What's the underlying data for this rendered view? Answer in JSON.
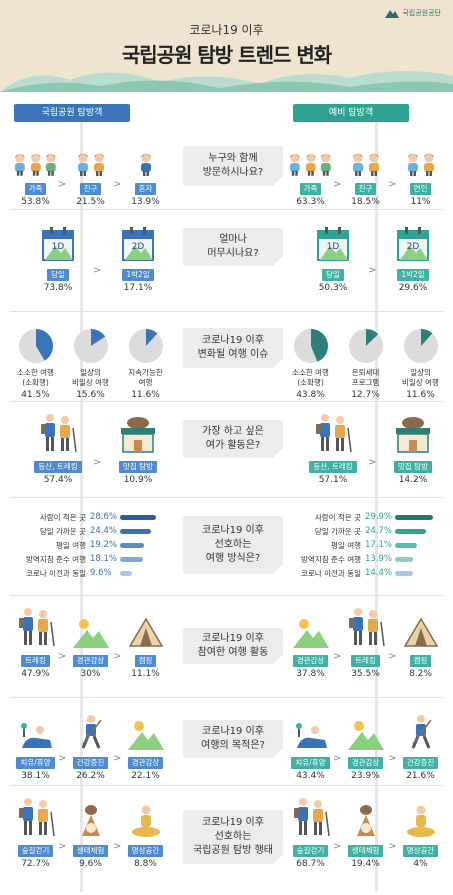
{
  "header": {
    "subtitle": "코로나19 이후",
    "title": "국립공원 탐방 트렌드 변화",
    "logo_text": "국립공원공단"
  },
  "columns": {
    "left": "국립공원 탐방객",
    "right": "예비 탐방객"
  },
  "colors": {
    "left_blue": "#3b73b9",
    "right_teal": "#2ea391",
    "header_bg": "#efe4cf"
  },
  "sections": [
    {
      "question": "누구와 함께\n방문하시나요?",
      "left": [
        {
          "label": "가족",
          "value": "53.8%"
        },
        {
          "label": "친구",
          "value": "21.5%"
        },
        {
          "label": "혼자",
          "value": "13.9%"
        }
      ],
      "right": [
        {
          "label": "가족",
          "value": "63.3%"
        },
        {
          "label": "친구",
          "value": "18.5%"
        },
        {
          "label": "연인",
          "value": "11%"
        }
      ]
    },
    {
      "question": "얼마나\n머무시나요?",
      "left": [
        {
          "label": "당일",
          "value": "73.8%",
          "cal": "1D"
        },
        {
          "label": "1박2일",
          "value": "17.1%",
          "cal": "2D"
        }
      ],
      "right": [
        {
          "label": "당일",
          "value": "50.3%",
          "cal": "1D"
        },
        {
          "label": "1박2일",
          "value": "29.6%",
          "cal": "2D"
        }
      ]
    },
    {
      "question": "코로나19 이후\n변화될 여행 이슈",
      "left": [
        {
          "label": "소소한 여행\n(소확행)",
          "value": "41.5%",
          "share": 0.415
        },
        {
          "label": "일상의\n비일상 여행",
          "value": "15.6%",
          "share": 0.156
        },
        {
          "label": "지속가능한\n여행",
          "value": "11.6%",
          "share": 0.116
        }
      ],
      "right": [
        {
          "label": "소소한 여행\n(소확행)",
          "value": "43.8%",
          "share": 0.438
        },
        {
          "label": "은퇴세대\n프로그램",
          "value": "12.7%",
          "share": 0.127
        },
        {
          "label": "일상의\n비일상 여행",
          "value": "11.6%",
          "share": 0.116
        }
      ]
    },
    {
      "question": "가장 하고 싶은\n여가 활동은?",
      "left": [
        {
          "label": "등산, 트레킹",
          "value": "57.4%"
        },
        {
          "label": "맛집 탐방",
          "value": "10.9%"
        }
      ],
      "right": [
        {
          "label": "등산, 트레킹",
          "value": "57.1%"
        },
        {
          "label": "맛집 탐방",
          "value": "14.2%"
        }
      ]
    },
    {
      "question": "코로나19 이후\n선호하는\n여행 방식은?",
      "left": [
        {
          "label": "사람이 적은 곳",
          "value": "28.6%",
          "v": 28.6
        },
        {
          "label": "당일 가까운 곳",
          "value": "24.4%",
          "v": 24.4
        },
        {
          "label": "평일 여행",
          "value": "19.2%",
          "v": 19.2
        },
        {
          "label": "방역지침 준수 여행",
          "value": "18.1%",
          "v": 18.1
        },
        {
          "label": "코로나 이전과 동일",
          "value": "9.6%",
          "v": 9.6
        }
      ],
      "right": [
        {
          "label": "사람이 적은 곳",
          "value": "29.9%",
          "v": 29.9
        },
        {
          "label": "당일 가까운 곳",
          "value": "24.7%",
          "v": 24.7
        },
        {
          "label": "평일 여행",
          "value": "17.1%",
          "v": 17.1
        },
        {
          "label": "방역지침 준수 여행",
          "value": "13.9%",
          "v": 13.9
        },
        {
          "label": "코로나 이전과 동일",
          "value": "14.4%",
          "v": 14.4
        }
      ]
    },
    {
      "question": "코로나19 이후\n참여한 여행 활동",
      "left": [
        {
          "label": "트레킹",
          "value": "47.9%"
        },
        {
          "label": "경관감상",
          "value": "30%"
        },
        {
          "label": "캠핑",
          "value": "11.1%"
        }
      ],
      "right": [
        {
          "label": "경관감상",
          "value": "37.8%"
        },
        {
          "label": "트레킹",
          "value": "35.5%"
        },
        {
          "label": "캠핑",
          "value": "8.2%"
        }
      ]
    },
    {
      "question": "코로나19 이후\n여행의 목적은?",
      "left": [
        {
          "label": "치유/휴양",
          "value": "38.1%"
        },
        {
          "label": "건강증진",
          "value": "26.2%"
        },
        {
          "label": "경관감상",
          "value": "22.1%"
        }
      ],
      "right": [
        {
          "label": "치유/휴양",
          "value": "43.4%"
        },
        {
          "label": "경관감상",
          "value": "23.9%"
        },
        {
          "label": "건강증진",
          "value": "21.6%"
        }
      ]
    },
    {
      "question": "코로나19 이후\n선호하는\n국립공원 탐방 행태",
      "left": [
        {
          "label": "숲길걷기",
          "value": "72.7%"
        },
        {
          "label": "생태체험",
          "value": "9.6%"
        },
        {
          "label": "명상공간",
          "value": "8.8%"
        }
      ],
      "right": [
        {
          "label": "숲길걷기",
          "value": "68.7%"
        },
        {
          "label": "생태체험",
          "value": "19.4%"
        },
        {
          "label": "명상공간",
          "value": "4%"
        }
      ]
    }
  ]
}
